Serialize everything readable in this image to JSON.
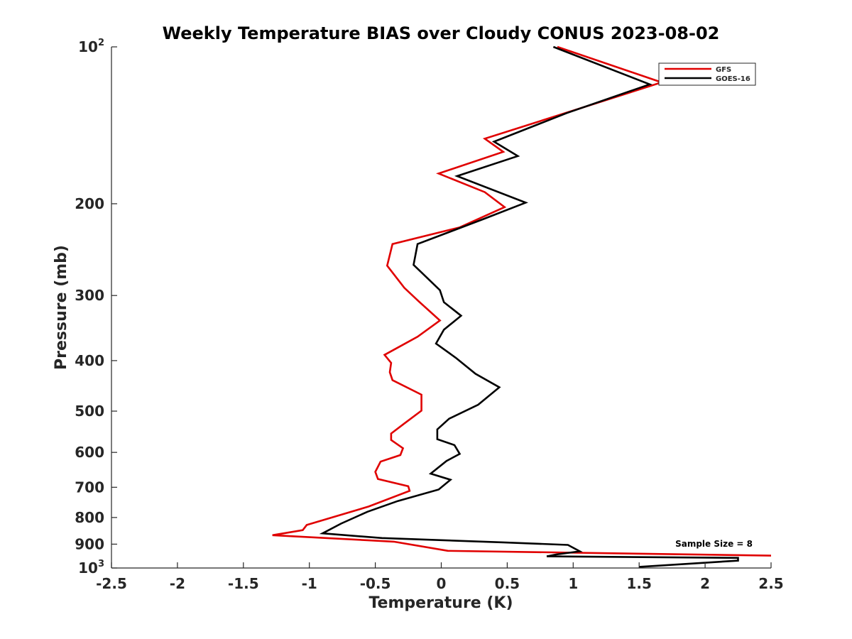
{
  "chart_data": {
    "type": "line",
    "title": "Weekly Temperature BIAS over Cloudy CONUS 2023-08-02",
    "xlabel": "Temperature (K)",
    "ylabel": "Pressure (mb)",
    "xlim": [
      -2.5,
      2.5
    ],
    "ylim": [
      100,
      1000
    ],
    "y_scale": "log",
    "y_reversed": true,
    "grid": false,
    "legend_position": "top-right",
    "x_ticks": [
      {
        "value": -2.5,
        "label": "-2.5"
      },
      {
        "value": -2,
        "label": "-2"
      },
      {
        "value": -1.5,
        "label": "-1.5"
      },
      {
        "value": -1,
        "label": "-1"
      },
      {
        "value": -0.5,
        "label": "-0.5"
      },
      {
        "value": 0,
        "label": "0"
      },
      {
        "value": 0.5,
        "label": "0.5"
      },
      {
        "value": 1,
        "label": "1"
      },
      {
        "value": 1.5,
        "label": "1.5"
      },
      {
        "value": 2,
        "label": "2"
      },
      {
        "value": 2.5,
        "label": "2.5"
      }
    ],
    "y_ticks": [
      {
        "value": 100,
        "base": "10",
        "exp": "2"
      },
      {
        "value": 200,
        "label": "200"
      },
      {
        "value": 300,
        "label": "300"
      },
      {
        "value": 400,
        "label": "400"
      },
      {
        "value": 500,
        "label": "500"
      },
      {
        "value": 600,
        "label": "600"
      },
      {
        "value": 700,
        "label": "700"
      },
      {
        "value": 800,
        "label": "800"
      },
      {
        "value": 900,
        "label": "900"
      },
      {
        "value": 1000,
        "base": "10",
        "exp": "3"
      }
    ],
    "annotation": "Sample Size = 8",
    "series": [
      {
        "name": "GFS",
        "color": "#e00000",
        "points": [
          [
            0.88,
            100
          ],
          [
            1.67,
            117
          ],
          [
            0.94,
            134
          ],
          [
            0.33,
            150
          ],
          [
            0.47,
            159
          ],
          [
            -0.02,
            175
          ],
          [
            0.33,
            190
          ],
          [
            0.48,
            203
          ],
          [
            0.14,
            222
          ],
          [
            -0.37,
            239
          ],
          [
            -0.41,
            263
          ],
          [
            -0.28,
            290
          ],
          [
            -0.17,
            308
          ],
          [
            -0.01,
            335
          ],
          [
            -0.18,
            360
          ],
          [
            -0.43,
            390
          ],
          [
            -0.38,
            404
          ],
          [
            -0.39,
            421
          ],
          [
            -0.37,
            436
          ],
          [
            -0.15,
            465
          ],
          [
            -0.15,
            499
          ],
          [
            -0.28,
            528
          ],
          [
            -0.38,
            552
          ],
          [
            -0.38,
            568
          ],
          [
            -0.29,
            589
          ],
          [
            -0.31,
            607
          ],
          [
            -0.46,
            625
          ],
          [
            -0.5,
            654
          ],
          [
            -0.48,
            675
          ],
          [
            -0.25,
            697
          ],
          [
            -0.24,
            711
          ],
          [
            -0.55,
            762
          ],
          [
            -1.02,
            827
          ],
          [
            -1.05,
            846
          ],
          [
            -1.28,
            865
          ],
          [
            -0.36,
            890
          ],
          [
            0.05,
            927
          ],
          [
            2.5,
            947
          ]
        ]
      },
      {
        "name": "GOES-16",
        "color": "#000000",
        "points": [
          [
            0.85,
            100
          ],
          [
            1.58,
            118
          ],
          [
            0.95,
            134
          ],
          [
            0.4,
            152
          ],
          [
            0.58,
            162
          ],
          [
            0.12,
            177
          ],
          [
            0.64,
            199
          ],
          [
            0.32,
            214
          ],
          [
            -0.18,
            239
          ],
          [
            -0.21,
            262
          ],
          [
            -0.01,
            293
          ],
          [
            0.02,
            309
          ],
          [
            0.15,
            328
          ],
          [
            0.02,
            349
          ],
          [
            -0.04,
            371
          ],
          [
            0.11,
            395
          ],
          [
            0.26,
            424
          ],
          [
            0.44,
            450
          ],
          [
            0.28,
            486
          ],
          [
            0.06,
            517
          ],
          [
            -0.03,
            542
          ],
          [
            -0.03,
            566
          ],
          [
            0.1,
            581
          ],
          [
            0.14,
            604
          ],
          [
            0.04,
            623
          ],
          [
            -0.08,
            659
          ],
          [
            0.07,
            677
          ],
          [
            -0.02,
            707
          ],
          [
            -0.33,
            744
          ],
          [
            -0.56,
            780
          ],
          [
            -0.76,
            822
          ],
          [
            -0.9,
            858
          ],
          [
            -0.45,
            876
          ],
          [
            0.47,
            893
          ],
          [
            0.96,
            903
          ],
          [
            1.05,
            929
          ],
          [
            0.87,
            942
          ],
          [
            0.8,
            950
          ],
          [
            2.25,
            956
          ],
          [
            2.25,
            968
          ],
          [
            1.5,
            995
          ]
        ]
      }
    ]
  }
}
